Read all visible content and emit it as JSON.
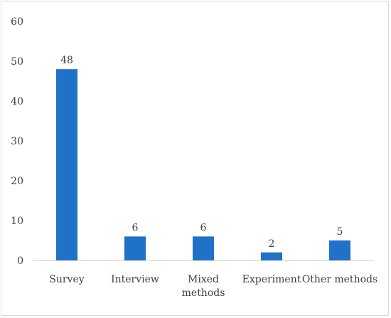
{
  "chart_data": {
    "type": "bar",
    "categories": [
      "Survey",
      "Interview",
      "Mixed methods",
      "Experiment",
      "Other methods"
    ],
    "category_lines": [
      [
        "Survey"
      ],
      [
        "Interview"
      ],
      [
        "Mixed",
        "methods"
      ],
      [
        "Experiment"
      ],
      [
        "Other methods"
      ]
    ],
    "values": [
      48,
      6,
      6,
      2,
      5
    ],
    "ylim": [
      0,
      60
    ],
    "yticks": [
      0,
      10,
      20,
      30,
      40,
      50,
      60
    ],
    "grid": false,
    "legend": "none",
    "data_labels": true,
    "bar_color": "#1f72c8"
  }
}
